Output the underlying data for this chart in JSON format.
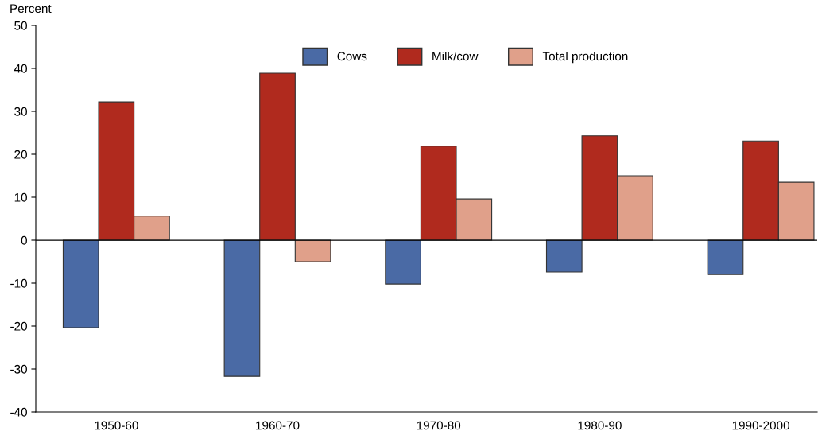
{
  "chart_data": {
    "type": "bar",
    "ylabel": "Percent",
    "categories": [
      "1950-60",
      "1960-70",
      "1970-80",
      "1980-90",
      "1990-2000"
    ],
    "series": [
      {
        "name": "Cows",
        "color": "#4a6aa5",
        "values": [
          -20.4,
          -31.7,
          -10.2,
          -7.4,
          -8.0
        ]
      },
      {
        "name": "Milk/cow",
        "color": "#b02a1e",
        "values": [
          32.2,
          38.9,
          21.9,
          24.3,
          23.1
        ]
      },
      {
        "name": "Total production",
        "color": "#e0a08a",
        "values": [
          5.6,
          -5.0,
          9.6,
          15.0,
          13.5
        ]
      }
    ],
    "ylim": [
      -40,
      50
    ],
    "yticks": [
      -40,
      -30,
      -20,
      -10,
      0,
      10,
      20,
      30,
      40,
      50
    ],
    "grid": false,
    "legend": "top",
    "ref_lines": [
      {
        "axis": "y",
        "value": 0,
        "label": null,
        "color": "#000000"
      }
    ]
  }
}
